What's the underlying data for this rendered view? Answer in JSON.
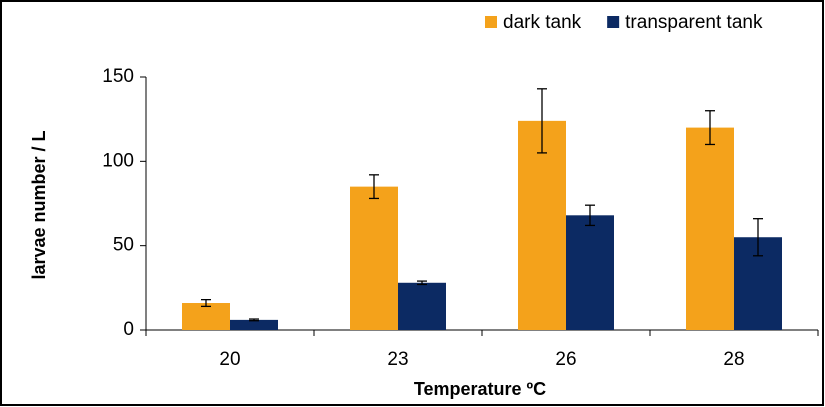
{
  "chart_data": {
    "type": "bar",
    "x_label": "Temperature ºC",
    "y_label": "larvae number / L",
    "categories": [
      "20",
      "23",
      "26",
      "28"
    ],
    "series": [
      {
        "name": "dark tank",
        "color": "#f4a21b",
        "values": [
          16,
          85,
          124,
          120
        ],
        "errors": [
          2,
          7,
          19,
          10
        ]
      },
      {
        "name": "transparent tank",
        "color": "#0c2a63",
        "values": [
          6,
          28,
          68,
          55
        ],
        "errors": [
          0.5,
          1,
          6,
          11
        ]
      }
    ],
    "ylim": [
      0,
      150
    ],
    "yticks": [
      0,
      50,
      100,
      150
    ],
    "grid": false,
    "legend": "top-right"
  }
}
